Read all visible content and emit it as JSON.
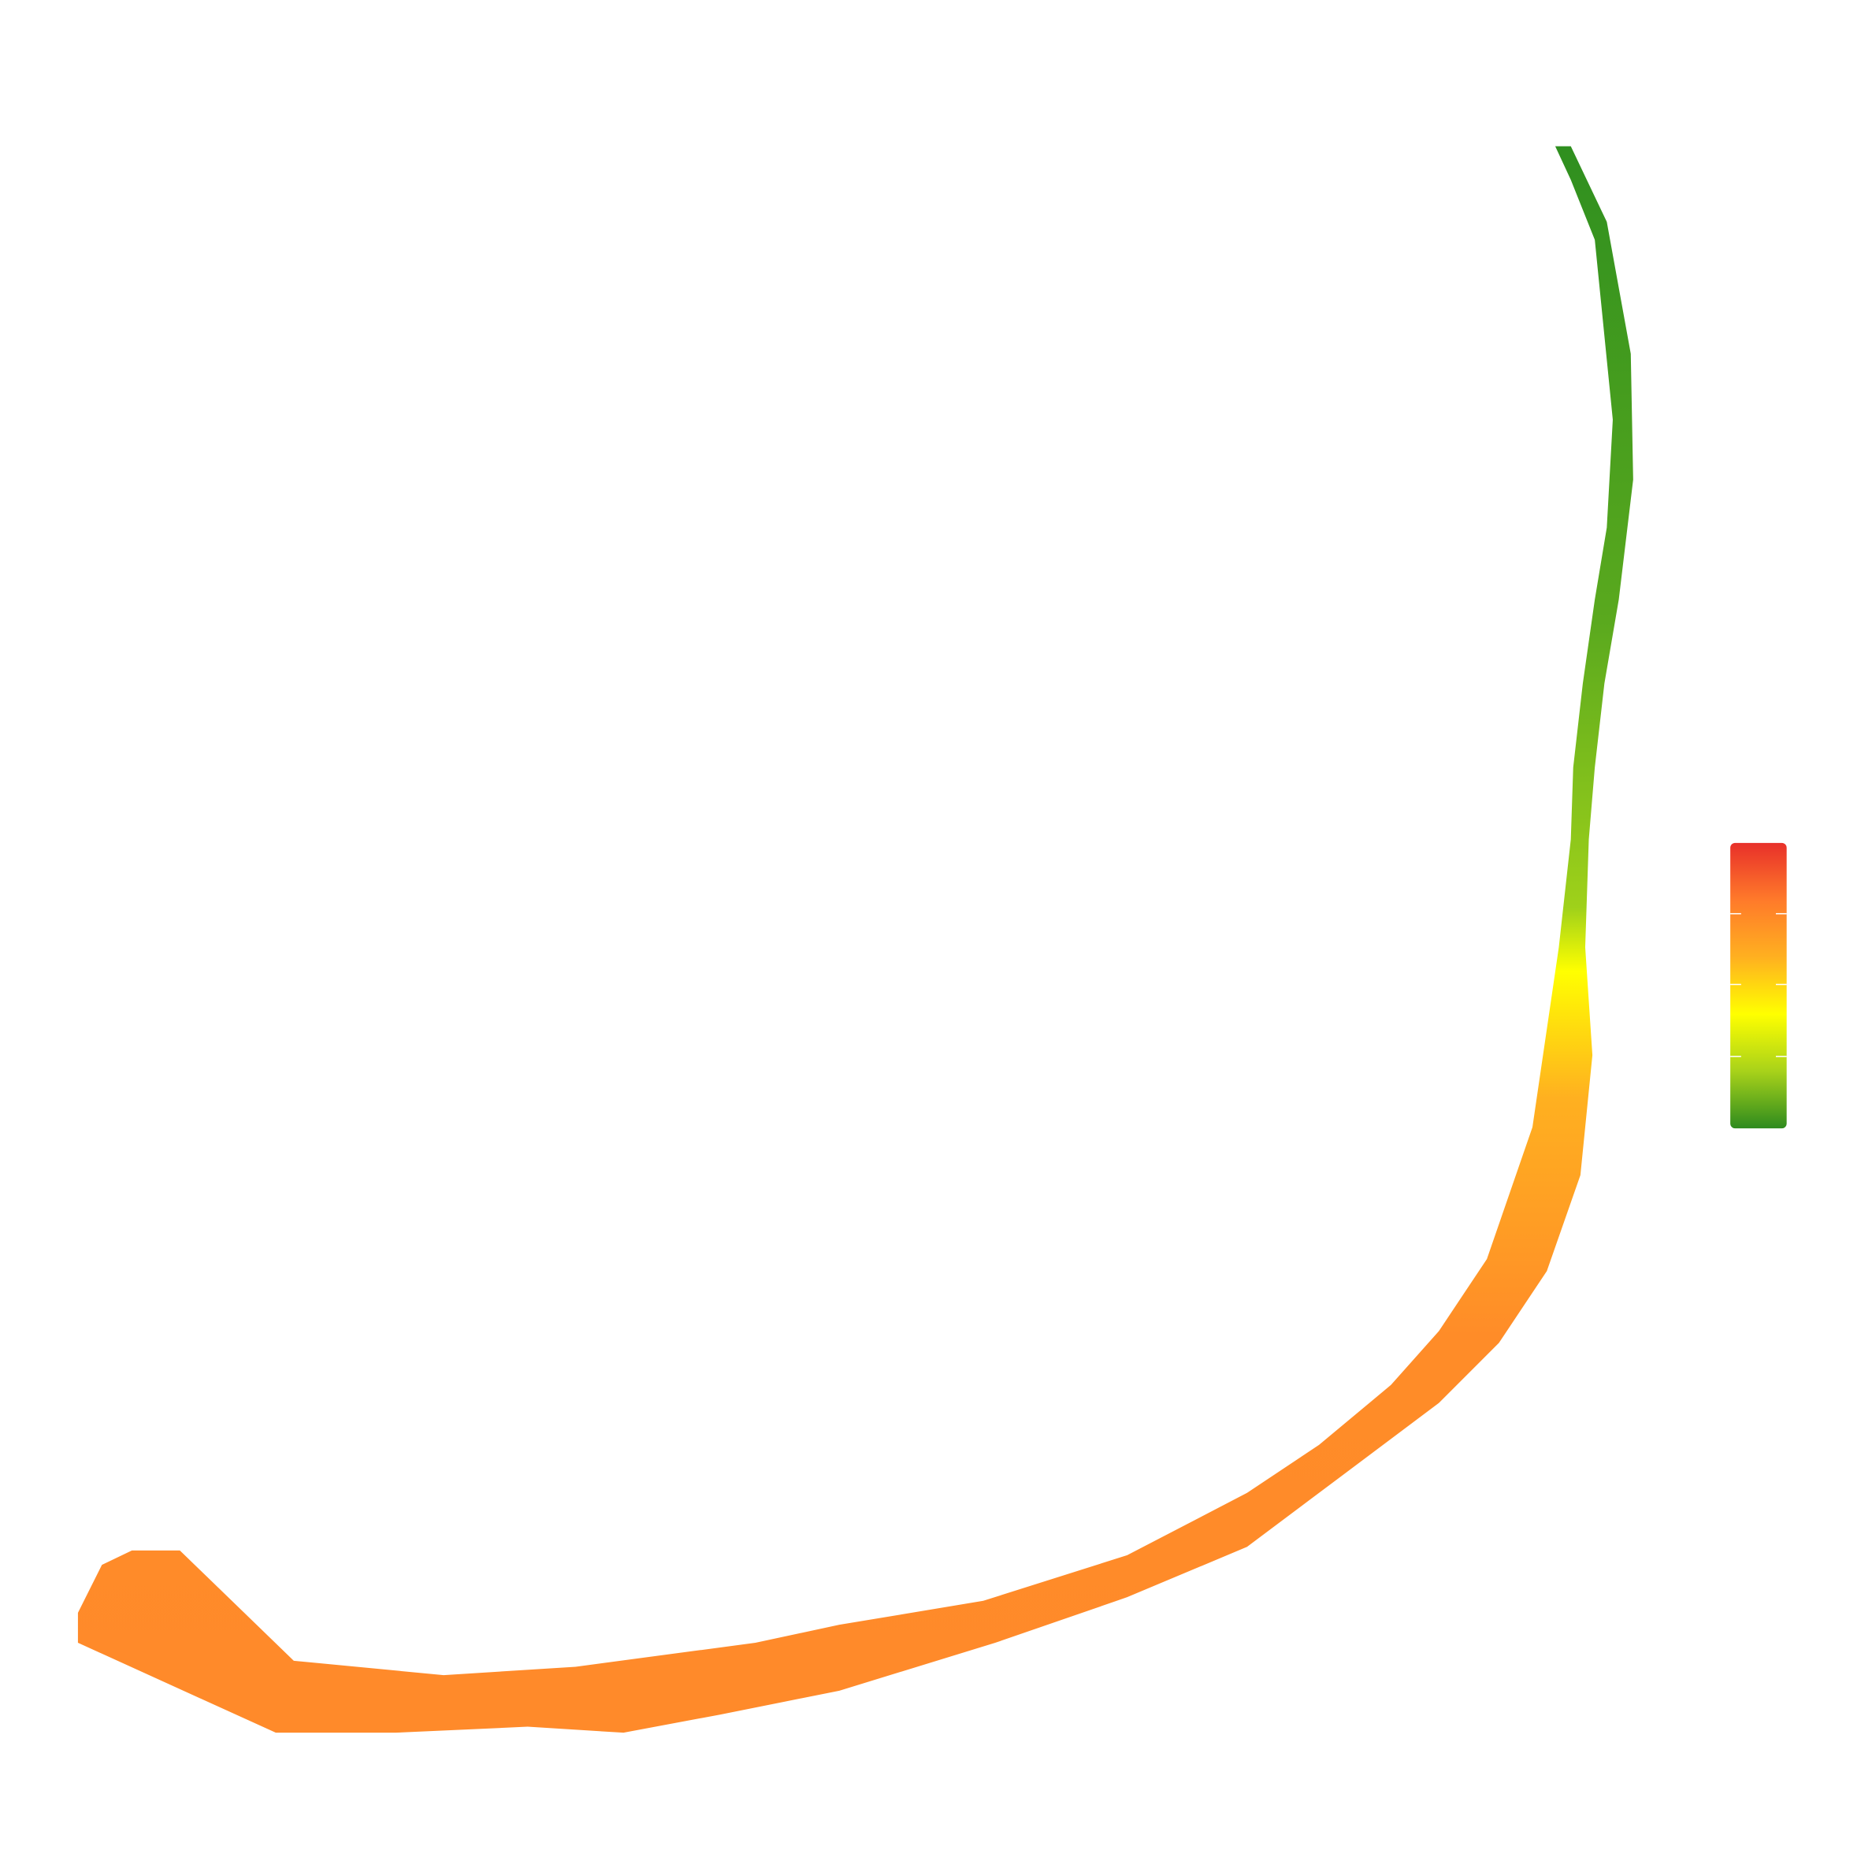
{
  "map": {
    "colors": [
      "#2f8f1f",
      "#5aa91e",
      "#9fd11a",
      "#ffff00",
      "#ffb020",
      "#ff8c28",
      "#ff8a2a"
    ]
  },
  "colorbar": {
    "colors": [
      "#e8302a",
      "#ff7a2a",
      "#ffb020",
      "#ffff00",
      "#a8d21a",
      "#2e8b1e"
    ]
  }
}
